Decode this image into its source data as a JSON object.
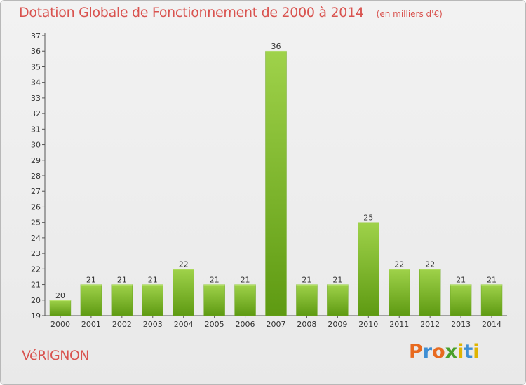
{
  "header": {
    "title": "Dotation Globale de Fonctionnement de 2000 à 2014",
    "subtitle": "(en milliers d'€)"
  },
  "footer": {
    "commune": "VéRIGNON",
    "brand": "Proxiti"
  },
  "colors": {
    "title": "#d9534f",
    "bar_light": "#9fd24a",
    "bar_dark": "#5e9a12",
    "axis": "#555555",
    "brand_letters": [
      "#e86a1f",
      "#3f8fd4",
      "#e86a1f",
      "#4aa02c",
      "#e0b400",
      "#3f8fd4",
      "#e0b400"
    ]
  },
  "chart_data": {
    "type": "bar",
    "title": "Dotation Globale de Fonctionnement de 2000 à 2014",
    "subtitle": "(en milliers d'€)",
    "categories": [
      "2000",
      "2001",
      "2002",
      "2003",
      "2004",
      "2005",
      "2006",
      "2007",
      "2008",
      "2009",
      "2010",
      "2011",
      "2012",
      "2013",
      "2014"
    ],
    "values": [
      20,
      21,
      21,
      21,
      22,
      21,
      21,
      36,
      21,
      21,
      25,
      22,
      22,
      21,
      21
    ],
    "xlabel": "",
    "ylabel": "",
    "ylim": [
      19,
      37
    ],
    "yticks": [
      19,
      20,
      21,
      22,
      23,
      24,
      25,
      26,
      27,
      28,
      29,
      30,
      31,
      32,
      33,
      34,
      35,
      36,
      37
    ],
    "grid": false,
    "data_labels": true
  }
}
